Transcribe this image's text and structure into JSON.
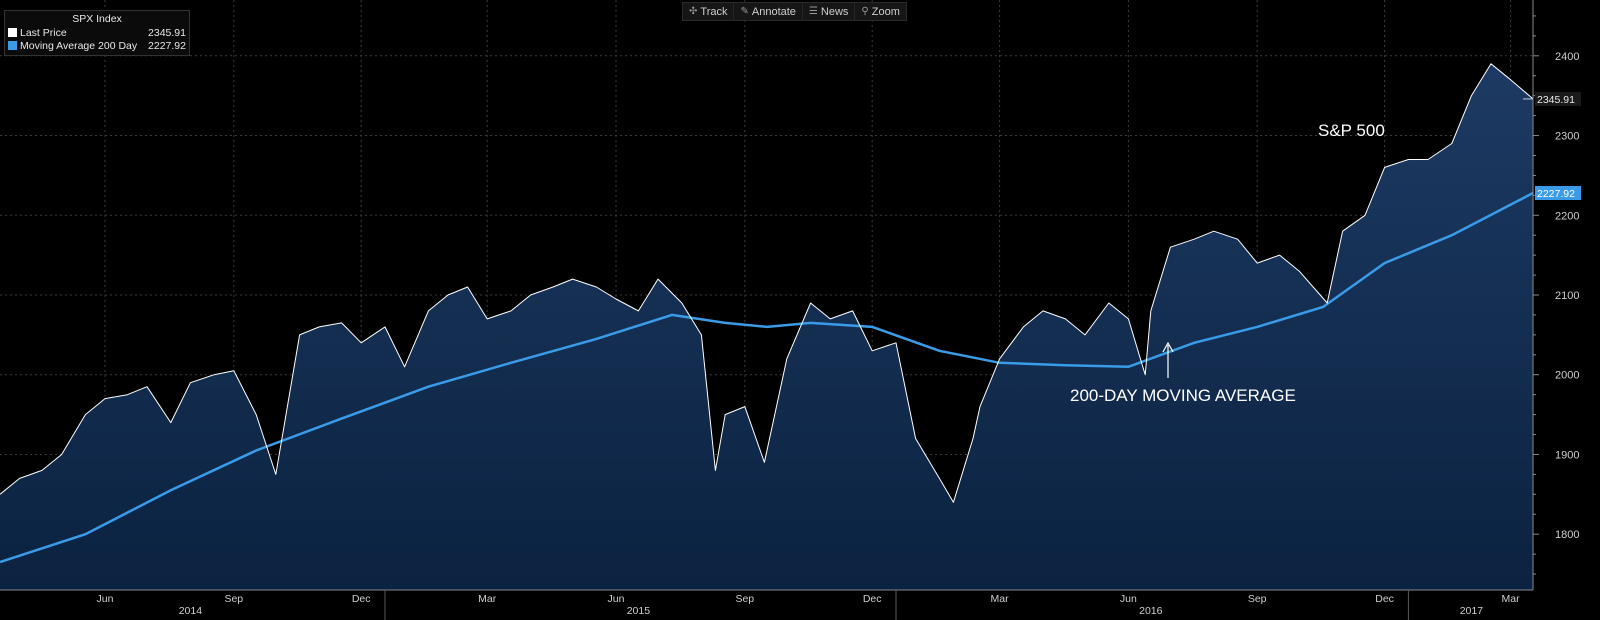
{
  "toolbar": {
    "track_label": "Track",
    "annotate_label": "Annotate",
    "news_label": "News",
    "zoom_label": "Zoom"
  },
  "legend": {
    "title": "SPX Index",
    "items": [
      {
        "label": "Last Price",
        "value": "2345.91",
        "color": "#ffffff"
      },
      {
        "label": "Moving Average 200 Day",
        "value": "2227.92",
        "color": "#3a9be8"
      }
    ]
  },
  "chart_data": {
    "type": "line",
    "title": "SPX Index",
    "annotations": [
      "S&P 500",
      "200-DAY MOVING AVERAGE"
    ],
    "ylim": [
      1730,
      2470
    ],
    "yticks": [
      1800,
      1900,
      2000,
      2100,
      2200,
      2300,
      2400
    ],
    "x_month_ticks": [
      "Jun",
      "Sep",
      "Dec",
      "Mar",
      "Jun",
      "Sep",
      "Dec",
      "Mar",
      "Jun",
      "Sep",
      "Dec",
      "Mar"
    ],
    "x_year_labels": [
      "2014",
      "2015",
      "2016",
      "2017"
    ],
    "x_range": [
      "2014-04",
      "2017-03"
    ],
    "price_axis_labels": {
      "last_price": "2345.91",
      "moving_average": "2227.92"
    },
    "series": [
      {
        "name": "Last Price",
        "color": "#ffffff",
        "x": [
          "2014-04-01",
          "2014-04-15",
          "2014-05-01",
          "2014-05-15",
          "2014-06-01",
          "2014-06-15",
          "2014-07-01",
          "2014-07-15",
          "2014-08-01",
          "2014-08-15",
          "2014-09-01",
          "2014-09-15",
          "2014-10-01",
          "2014-10-15",
          "2014-11-01",
          "2014-11-15",
          "2014-12-01",
          "2014-12-15",
          "2015-01-01",
          "2015-01-15",
          "2015-02-01",
          "2015-02-15",
          "2015-03-01",
          "2015-03-15",
          "2015-04-01",
          "2015-04-15",
          "2015-05-01",
          "2015-05-15",
          "2015-06-01",
          "2015-06-15",
          "2015-07-01",
          "2015-07-15",
          "2015-08-01",
          "2015-08-15",
          "2015-08-25",
          "2015-09-01",
          "2015-09-15",
          "2015-09-29",
          "2015-10-15",
          "2015-11-01",
          "2015-11-15",
          "2015-12-01",
          "2015-12-15",
          "2016-01-01",
          "2016-01-15",
          "2016-02-01",
          "2016-02-11",
          "2016-02-25",
          "2016-03-01",
          "2016-03-15",
          "2016-04-01",
          "2016-04-15",
          "2016-05-01",
          "2016-05-15",
          "2016-06-01",
          "2016-06-15",
          "2016-06-27",
          "2016-07-01",
          "2016-07-15",
          "2016-08-01",
          "2016-08-15",
          "2016-09-01",
          "2016-09-15",
          "2016-10-01",
          "2016-10-15",
          "2016-11-04",
          "2016-11-15",
          "2016-12-01",
          "2016-12-15",
          "2017-01-01",
          "2017-01-15",
          "2017-02-01",
          "2017-02-15",
          "2017-03-01",
          "2017-03-15",
          "2017-03-31"
        ],
        "values": [
          1850,
          1870,
          1880,
          1900,
          1950,
          1970,
          1975,
          1985,
          1940,
          1990,
          2000,
          2005,
          1950,
          1875,
          2050,
          2060,
          2065,
          2040,
          2060,
          2010,
          2080,
          2100,
          2110,
          2070,
          2080,
          2100,
          2110,
          2120,
          2110,
          2095,
          2080,
          2120,
          2090,
          2050,
          1880,
          1950,
          1960,
          1890,
          2020,
          2090,
          2070,
          2080,
          2030,
          2040,
          1920,
          1870,
          1840,
          1920,
          1960,
          2020,
          2060,
          2080,
          2070,
          2050,
          2090,
          2070,
          2000,
          2080,
          2160,
          2170,
          2180,
          2170,
          2140,
          2150,
          2130,
          2090,
          2180,
          2200,
          2260,
          2270,
          2270,
          2290,
          2350,
          2390,
          2370,
          2345.91
        ]
      },
      {
        "name": "Moving Average 200 Day",
        "color": "#3a9be8",
        "x": [
          "2014-04-01",
          "2014-06-01",
          "2014-08-01",
          "2014-10-01",
          "2014-12-01",
          "2015-02-01",
          "2015-04-01",
          "2015-06-01",
          "2015-07-25",
          "2015-09-01",
          "2015-10-01",
          "2015-11-01",
          "2015-12-15",
          "2016-02-01",
          "2016-03-15",
          "2016-05-01",
          "2016-06-15",
          "2016-08-01",
          "2016-09-15",
          "2016-11-01",
          "2016-12-15",
          "2017-02-01",
          "2017-03-31"
        ],
        "values": [
          1765,
          1800,
          1855,
          1905,
          1945,
          1985,
          2015,
          2045,
          2075,
          2065,
          2060,
          2065,
          2060,
          2030,
          2015,
          2012,
          2010,
          2040,
          2060,
          2085,
          2140,
          2175,
          2227.92
        ]
      }
    ]
  }
}
